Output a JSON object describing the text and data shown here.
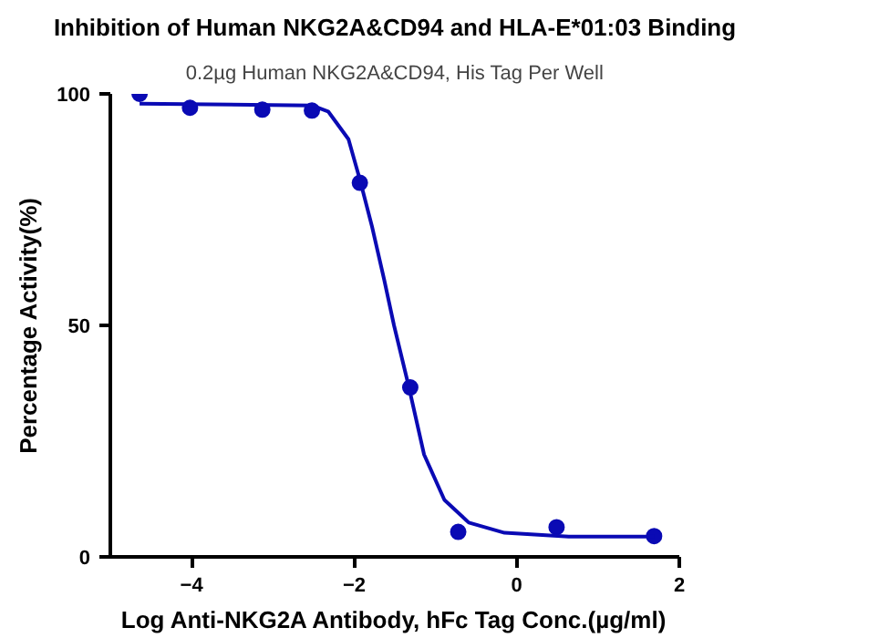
{
  "chart_data": {
    "type": "scatter",
    "title": "Inhibition of Human NKG2A&CD94 and HLA-E*01:03 Binding",
    "subtitle": "0.2µg Human NKG2A&CD94, His Tag Per Well",
    "xlabel": "Log Anti-NKG2A Antibody, hFc Tag Conc.(µg/ml)",
    "ylabel": "Percentage Activity(%)",
    "xlim": [
      -5,
      2
    ],
    "ylim": [
      0,
      100
    ],
    "xticks": [
      -4,
      -2,
      0,
      2
    ],
    "yticks": [
      0,
      50,
      100
    ],
    "grid": false,
    "series": [
      {
        "marker": "circle",
        "color": "#0a0ab4",
        "x": [
          -4.64,
          -4.02,
          -3.13,
          -2.52,
          -1.93,
          -1.31,
          -0.72,
          0.49,
          1.69
        ],
        "values": [
          100,
          97,
          96.6,
          96.4,
          80.8,
          36.6,
          5.4,
          6.4,
          4.5
        ]
      },
      {
        "type": "line",
        "line_style": "solid",
        "color": "#0a0ab4",
        "x": [
          -4.64,
          -2.52,
          -2.32,
          -2.07,
          -1.93,
          -1.78,
          -1.63,
          -1.51,
          -1.33,
          -1.14,
          -0.89,
          -0.59,
          -0.15,
          0.64,
          1.69
        ],
        "values": [
          97.9,
          97.5,
          96.2,
          90.2,
          81.5,
          71.3,
          59.8,
          50,
          36.9,
          22.1,
          12.3,
          7.4,
          5.2,
          4.4,
          4.4
        ]
      }
    ]
  }
}
